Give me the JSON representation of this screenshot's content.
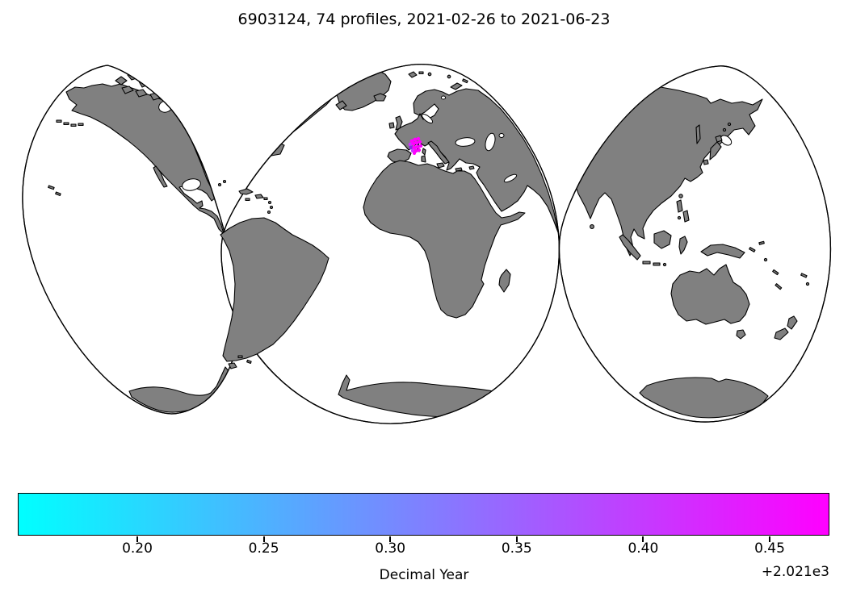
{
  "title": "6903124, 74 profiles, 2021-02-26 to 2021-06-23",
  "figure": {
    "background": "#ffffff",
    "land_color": "#808080",
    "coastline_color": "#000000"
  },
  "map": {
    "projection": "interrupted three-lobe world map",
    "lobes": [
      "Americas",
      "Europe-Africa",
      "Asia-Oceania"
    ],
    "float_marker": {
      "location": "Gulf of Lion, NW Mediterranean Sea",
      "approx_lon_lat": [
        5.0,
        42.0
      ],
      "colors": [
        "#ff00ff",
        "#cc33ff",
        "#8a2be2"
      ],
      "dark_color": "#1b1b3a"
    }
  },
  "colorbar": {
    "label": "Decimal Year",
    "offset_text": "+2.021e3",
    "ticks": [
      "0.20",
      "0.25",
      "0.30",
      "0.35",
      "0.40",
      "0.45"
    ],
    "cmap": "cool",
    "gradient": [
      "#00ffff",
      "#ff00ff"
    ],
    "vmin": 2021.156,
    "vmax": 2021.477
  },
  "chart_data": {
    "type": "scatter",
    "title": "6903124, 74 profiles, 2021-02-26 to 2021-06-23",
    "platform_id": "6903124",
    "n_profiles": 74,
    "date_start": "2021-02-26",
    "date_end": "2021-06-23",
    "xlabel": "",
    "ylabel": "",
    "color_variable": "Decimal Year",
    "color_axis_ticks": [
      2021.2,
      2021.25,
      2021.3,
      2021.35,
      2021.4,
      2021.45
    ],
    "color_range": [
      2021.156,
      2021.477
    ],
    "colormap": "cool (cyan to magenta)",
    "legend_position": "horizontal colorbar below map",
    "cluster_center_lon_lat": [
      5.0,
      42.0
    ],
    "cluster_extent_deg": 1.5,
    "notes": "74 Argo float profile positions tightly clustered in the Gulf of Lion (~42N, 5E); dominant visible marker colors are magenta/purple (later profiles drawn on top). Basemap: gray continents, white ocean, interrupted 3-lobe projection."
  }
}
